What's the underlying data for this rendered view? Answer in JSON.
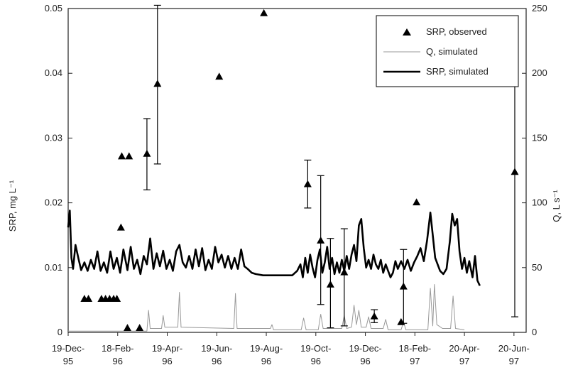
{
  "chart_data": {
    "type": "line",
    "ylabel_left": "SRP, mg L⁻¹",
    "ylabel_right": "Q, L s⁻¹",
    "ylim_left": [
      0,
      0.05
    ],
    "ylim_right": [
      0,
      250
    ],
    "yticks_left": [
      "0",
      "0.01",
      "0.02",
      "0.03",
      "0.04",
      "0.05"
    ],
    "yticks_right": [
      "0",
      "50",
      "100",
      "150",
      "200",
      "250"
    ],
    "xlim": [
      "1995-12-19",
      "1997-07-05"
    ],
    "xticks": [
      {
        "date": "1995-12-19",
        "l1": "19-Dec-",
        "l2": "95"
      },
      {
        "date": "1996-02-18",
        "l1": "18-Feb-",
        "l2": "96"
      },
      {
        "date": "1996-04-19",
        "l1": "19-Apr-",
        "l2": "96"
      },
      {
        "date": "1996-06-19",
        "l1": "19-Jun-",
        "l2": "96"
      },
      {
        "date": "1996-08-19",
        "l1": "19-Aug-",
        "l2": "96"
      },
      {
        "date": "1996-10-19",
        "l1": "19-Oct-",
        "l2": "96"
      },
      {
        "date": "1996-12-19",
        "l1": "19-Dec-",
        "l2": "96"
      },
      {
        "date": "1997-02-18",
        "l1": "18-Feb-",
        "l2": "97"
      },
      {
        "date": "1997-04-20",
        "l1": "20-Apr-",
        "l2": "97"
      },
      {
        "date": "1997-06-20",
        "l1": "20-Jun-",
        "l2": "97"
      }
    ],
    "grid": false,
    "legend_position": "top-right",
    "series": [
      {
        "name": "SRP, observed",
        "kind": "scatter",
        "marker": "triangle",
        "axis": "left",
        "color": "#000000",
        "points": [
          {
            "x": "1996-01-08",
            "y": 0.0052
          },
          {
            "x": "1996-01-13",
            "y": 0.0052
          },
          {
            "x": "1996-01-29",
            "y": 0.0052
          },
          {
            "x": "1996-02-03",
            "y": 0.0052
          },
          {
            "x": "1996-02-08",
            "y": 0.0052
          },
          {
            "x": "1996-02-13",
            "y": 0.0052
          },
          {
            "x": "1996-02-17",
            "y": 0.0052
          },
          {
            "x": "1996-02-22",
            "y": 0.0162
          },
          {
            "x": "1996-02-23",
            "y": 0.0272
          },
          {
            "x": "1996-03-03",
            "y": 0.0272
          },
          {
            "x": "1996-03-01",
            "y": 0.0007
          },
          {
            "x": "1996-03-16",
            "y": 0.0007
          },
          {
            "x": "1996-03-25",
            "y": 0.0276,
            "err_low": 0.022,
            "err_high": 0.033
          },
          {
            "x": "1996-04-07",
            "y": 0.0384,
            "err_low": 0.026,
            "err_high": 0.0505
          },
          {
            "x": "1996-06-22",
            "y": 0.0395
          },
          {
            "x": "1996-08-16",
            "y": 0.0493
          },
          {
            "x": "1996-10-09",
            "y": 0.0229,
            "err_low": 0.0192,
            "err_high": 0.0266
          },
          {
            "x": "1996-10-25",
            "y": 0.0142,
            "err_low": 0.0043,
            "err_high": 0.0242
          },
          {
            "x": "1996-11-06",
            "y": 0.0074,
            "err_low": 0.0007,
            "err_high": 0.0145
          },
          {
            "x": "1996-11-23",
            "y": 0.0093,
            "err_low": 0.001,
            "err_high": 0.016
          },
          {
            "x": "1996-12-30",
            "y": 0.0025,
            "err_low": 0.0015,
            "err_high": 0.0035
          },
          {
            "x": "1997-02-01",
            "y": 0.0016
          },
          {
            "x": "1997-02-04",
            "y": 0.0071,
            "err_low": 0.0014,
            "err_high": 0.0128
          },
          {
            "x": "1997-02-20",
            "y": 0.0201
          },
          {
            "x": "1997-06-21",
            "y": 0.0248,
            "err_low": 0.0024,
            "err_high": 0.0472
          }
        ]
      },
      {
        "name": "Q, simulated",
        "kind": "line",
        "axis": "right",
        "color": "#999999",
        "points": [
          {
            "x": "1995-12-19",
            "y": 1
          },
          {
            "x": "1996-03-25",
            "y": 1
          },
          {
            "x": "1996-03-27",
            "y": 17
          },
          {
            "x": "1996-03-29",
            "y": 3
          },
          {
            "x": "1996-04-12",
            "y": 3
          },
          {
            "x": "1996-04-14",
            "y": 13
          },
          {
            "x": "1996-04-16",
            "y": 4
          },
          {
            "x": "1996-05-02",
            "y": 4
          },
          {
            "x": "1996-05-04",
            "y": 31
          },
          {
            "x": "1996-05-06",
            "y": 4
          },
          {
            "x": "1996-07-10",
            "y": 3
          },
          {
            "x": "1996-07-12",
            "y": 30
          },
          {
            "x": "1996-07-14",
            "y": 3
          },
          {
            "x": "1996-08-24",
            "y": 3
          },
          {
            "x": "1996-08-26",
            "y": 6
          },
          {
            "x": "1996-08-28",
            "y": 2
          },
          {
            "x": "1996-10-01",
            "y": 2
          },
          {
            "x": "1996-10-04",
            "y": 11
          },
          {
            "x": "1996-10-07",
            "y": 2
          },
          {
            "x": "1996-10-22",
            "y": 2
          },
          {
            "x": "1996-10-25",
            "y": 14
          },
          {
            "x": "1996-10-28",
            "y": 3
          },
          {
            "x": "1996-11-20",
            "y": 3
          },
          {
            "x": "1996-11-23",
            "y": 13
          },
          {
            "x": "1996-11-26",
            "y": 3
          },
          {
            "x": "1996-12-02",
            "y": 4
          },
          {
            "x": "1996-12-05",
            "y": 21
          },
          {
            "x": "1996-12-08",
            "y": 6
          },
          {
            "x": "1996-12-11",
            "y": 17
          },
          {
            "x": "1996-12-14",
            "y": 4
          },
          {
            "x": "1996-12-20",
            "y": 4
          },
          {
            "x": "1996-12-23",
            "y": 12
          },
          {
            "x": "1996-12-26",
            "y": 3
          },
          {
            "x": "1997-01-10",
            "y": 3
          },
          {
            "x": "1997-01-13",
            "y": 10
          },
          {
            "x": "1997-01-16",
            "y": 2
          },
          {
            "x": "1997-02-01",
            "y": 2
          },
          {
            "x": "1997-02-04",
            "y": 8
          },
          {
            "x": "1997-02-07",
            "y": 2
          },
          {
            "x": "1997-03-06",
            "y": 2
          },
          {
            "x": "1997-03-09",
            "y": 34
          },
          {
            "x": "1997-03-12",
            "y": 5
          },
          {
            "x": "1997-03-14",
            "y": 37
          },
          {
            "x": "1997-03-17",
            "y": 6
          },
          {
            "x": "1997-03-24",
            "y": 3
          },
          {
            "x": "1997-04-03",
            "y": 3
          },
          {
            "x": "1997-04-06",
            "y": 28
          },
          {
            "x": "1997-04-09",
            "y": 3
          },
          {
            "x": "1997-04-20",
            "y": 2
          }
        ]
      },
      {
        "name": "SRP, simulated",
        "kind": "line",
        "axis": "left",
        "color": "#000000",
        "points": [
          {
            "x": "1995-12-19",
            "y": 0.0162
          },
          {
            "x": "1995-12-21",
            "y": 0.0188
          },
          {
            "x": "1995-12-23",
            "y": 0.0115
          },
          {
            "x": "1995-12-25",
            "y": 0.0098
          },
          {
            "x": "1995-12-28",
            "y": 0.0135
          },
          {
            "x": "1996-01-01",
            "y": 0.0112
          },
          {
            "x": "1996-01-04",
            "y": 0.0096
          },
          {
            "x": "1996-01-08",
            "y": 0.0108
          },
          {
            "x": "1996-01-12",
            "y": 0.0095
          },
          {
            "x": "1996-01-16",
            "y": 0.0112
          },
          {
            "x": "1996-01-20",
            "y": 0.0098
          },
          {
            "x": "1996-01-24",
            "y": 0.0125
          },
          {
            "x": "1996-01-28",
            "y": 0.0095
          },
          {
            "x": "1996-02-01",
            "y": 0.0108
          },
          {
            "x": "1996-02-05",
            "y": 0.0092
          },
          {
            "x": "1996-02-09",
            "y": 0.0125
          },
          {
            "x": "1996-02-13",
            "y": 0.0098
          },
          {
            "x": "1996-02-17",
            "y": 0.0115
          },
          {
            "x": "1996-02-21",
            "y": 0.0092
          },
          {
            "x": "1996-02-25",
            "y": 0.0128
          },
          {
            "x": "1996-03-01",
            "y": 0.0096
          },
          {
            "x": "1996-03-05",
            "y": 0.0132
          },
          {
            "x": "1996-03-09",
            "y": 0.0098
          },
          {
            "x": "1996-03-13",
            "y": 0.0112
          },
          {
            "x": "1996-03-17",
            "y": 0.009
          },
          {
            "x": "1996-03-21",
            "y": 0.0118
          },
          {
            "x": "1996-03-25",
            "y": 0.0105
          },
          {
            "x": "1996-03-29",
            "y": 0.0145
          },
          {
            "x": "1996-04-02",
            "y": 0.0098
          },
          {
            "x": "1996-04-06",
            "y": 0.0122
          },
          {
            "x": "1996-04-10",
            "y": 0.0102
          },
          {
            "x": "1996-04-14",
            "y": 0.0126
          },
          {
            "x": "1996-04-18",
            "y": 0.0098
          },
          {
            "x": "1996-04-22",
            "y": 0.0112
          },
          {
            "x": "1996-04-26",
            "y": 0.0095
          },
          {
            "x": "1996-04-30",
            "y": 0.0125
          },
          {
            "x": "1996-05-04",
            "y": 0.0135
          },
          {
            "x": "1996-05-08",
            "y": 0.0108
          },
          {
            "x": "1996-05-12",
            "y": 0.01
          },
          {
            "x": "1996-05-16",
            "y": 0.0118
          },
          {
            "x": "1996-05-20",
            "y": 0.0098
          },
          {
            "x": "1996-05-24",
            "y": 0.0128
          },
          {
            "x": "1996-05-28",
            "y": 0.0102
          },
          {
            "x": "1996-06-01",
            "y": 0.013
          },
          {
            "x": "1996-06-05",
            "y": 0.0096
          },
          {
            "x": "1996-06-09",
            "y": 0.0112
          },
          {
            "x": "1996-06-13",
            "y": 0.0098
          },
          {
            "x": "1996-06-17",
            "y": 0.0132
          },
          {
            "x": "1996-06-21",
            "y": 0.0108
          },
          {
            "x": "1996-06-25",
            "y": 0.012
          },
          {
            "x": "1996-06-29",
            "y": 0.01
          },
          {
            "x": "1996-07-03",
            "y": 0.0118
          },
          {
            "x": "1996-07-07",
            "y": 0.0098
          },
          {
            "x": "1996-07-11",
            "y": 0.0115
          },
          {
            "x": "1996-07-15",
            "y": 0.0098
          },
          {
            "x": "1996-07-19",
            "y": 0.0128
          },
          {
            "x": "1996-07-23",
            "y": 0.0102
          },
          {
            "x": "1996-07-27",
            "y": 0.0098
          },
          {
            "x": "1996-08-01",
            "y": 0.0092
          },
          {
            "x": "1996-08-06",
            "y": 0.009
          },
          {
            "x": "1996-08-15",
            "y": 0.0088
          },
          {
            "x": "1996-09-01",
            "y": 0.0088
          },
          {
            "x": "1996-09-20",
            "y": 0.0088
          },
          {
            "x": "1996-09-26",
            "y": 0.0095
          },
          {
            "x": "1996-09-30",
            "y": 0.0105
          },
          {
            "x": "1996-10-03",
            "y": 0.0085
          },
          {
            "x": "1996-10-06",
            "y": 0.0115
          },
          {
            "x": "1996-10-09",
            "y": 0.0092
          },
          {
            "x": "1996-10-12",
            "y": 0.012
          },
          {
            "x": "1996-10-15",
            "y": 0.01
          },
          {
            "x": "1996-10-18",
            "y": 0.0085
          },
          {
            "x": "1996-10-21",
            "y": 0.0112
          },
          {
            "x": "1996-10-24",
            "y": 0.0128
          },
          {
            "x": "1996-10-27",
            "y": 0.0092
          },
          {
            "x": "1996-10-30",
            "y": 0.0108
          },
          {
            "x": "1996-11-02",
            "y": 0.0132
          },
          {
            "x": "1996-11-05",
            "y": 0.0098
          },
          {
            "x": "1996-11-08",
            "y": 0.0115
          },
          {
            "x": "1996-11-11",
            "y": 0.009
          },
          {
            "x": "1996-11-14",
            "y": 0.0108
          },
          {
            "x": "1996-11-17",
            "y": 0.0092
          },
          {
            "x": "1996-11-20",
            "y": 0.0112
          },
          {
            "x": "1996-11-23",
            "y": 0.0095
          },
          {
            "x": "1996-11-26",
            "y": 0.0118
          },
          {
            "x": "1996-11-29",
            "y": 0.0098
          },
          {
            "x": "1996-12-02",
            "y": 0.012
          },
          {
            "x": "1996-12-05",
            "y": 0.0135
          },
          {
            "x": "1996-12-08",
            "y": 0.011
          },
          {
            "x": "1996-12-11",
            "y": 0.0165
          },
          {
            "x": "1996-12-14",
            "y": 0.0175
          },
          {
            "x": "1996-12-17",
            "y": 0.013
          },
          {
            "x": "1996-12-20",
            "y": 0.01
          },
          {
            "x": "1996-12-23",
            "y": 0.0112
          },
          {
            "x": "1996-12-26",
            "y": 0.0098
          },
          {
            "x": "1996-12-29",
            "y": 0.012
          },
          {
            "x": "1997-01-01",
            "y": 0.0105
          },
          {
            "x": "1997-01-04",
            "y": 0.0098
          },
          {
            "x": "1997-01-07",
            "y": 0.0112
          },
          {
            "x": "1997-01-10",
            "y": 0.0092
          },
          {
            "x": "1997-01-13",
            "y": 0.0105
          },
          {
            "x": "1997-01-16",
            "y": 0.0095
          },
          {
            "x": "1997-01-19",
            "y": 0.0085
          },
          {
            "x": "1997-01-22",
            "y": 0.0092
          },
          {
            "x": "1997-01-25",
            "y": 0.011
          },
          {
            "x": "1997-01-28",
            "y": 0.0098
          },
          {
            "x": "1997-02-01",
            "y": 0.011
          },
          {
            "x": "1997-02-05",
            "y": 0.0098
          },
          {
            "x": "1997-02-09",
            "y": 0.0112
          },
          {
            "x": "1997-02-13",
            "y": 0.0095
          },
          {
            "x": "1997-02-17",
            "y": 0.0108
          },
          {
            "x": "1997-02-21",
            "y": 0.0118
          },
          {
            "x": "1997-02-25",
            "y": 0.013
          },
          {
            "x": "1997-03-01",
            "y": 0.011
          },
          {
            "x": "1997-03-05",
            "y": 0.0142
          },
          {
            "x": "1997-03-09",
            "y": 0.0185
          },
          {
            "x": "1997-03-12",
            "y": 0.015
          },
          {
            "x": "1997-03-15",
            "y": 0.0115
          },
          {
            "x": "1997-03-18",
            "y": 0.0105
          },
          {
            "x": "1997-03-21",
            "y": 0.0095
          },
          {
            "x": "1997-03-25",
            "y": 0.009
          },
          {
            "x": "1997-03-29",
            "y": 0.0098
          },
          {
            "x": "1997-04-02",
            "y": 0.014
          },
          {
            "x": "1997-04-05",
            "y": 0.0183
          },
          {
            "x": "1997-04-08",
            "y": 0.0165
          },
          {
            "x": "1997-04-11",
            "y": 0.0175
          },
          {
            "x": "1997-04-14",
            "y": 0.0125
          },
          {
            "x": "1997-04-17",
            "y": 0.0098
          },
          {
            "x": "1997-04-20",
            "y": 0.0115
          },
          {
            "x": "1997-04-23",
            "y": 0.0092
          },
          {
            "x": "1997-04-26",
            "y": 0.011
          },
          {
            "x": "1997-04-30",
            "y": 0.0085
          },
          {
            "x": "1997-05-03",
            "y": 0.0118
          },
          {
            "x": "1997-05-06",
            "y": 0.008
          },
          {
            "x": "1997-05-09",
            "y": 0.0072
          }
        ]
      }
    ]
  }
}
